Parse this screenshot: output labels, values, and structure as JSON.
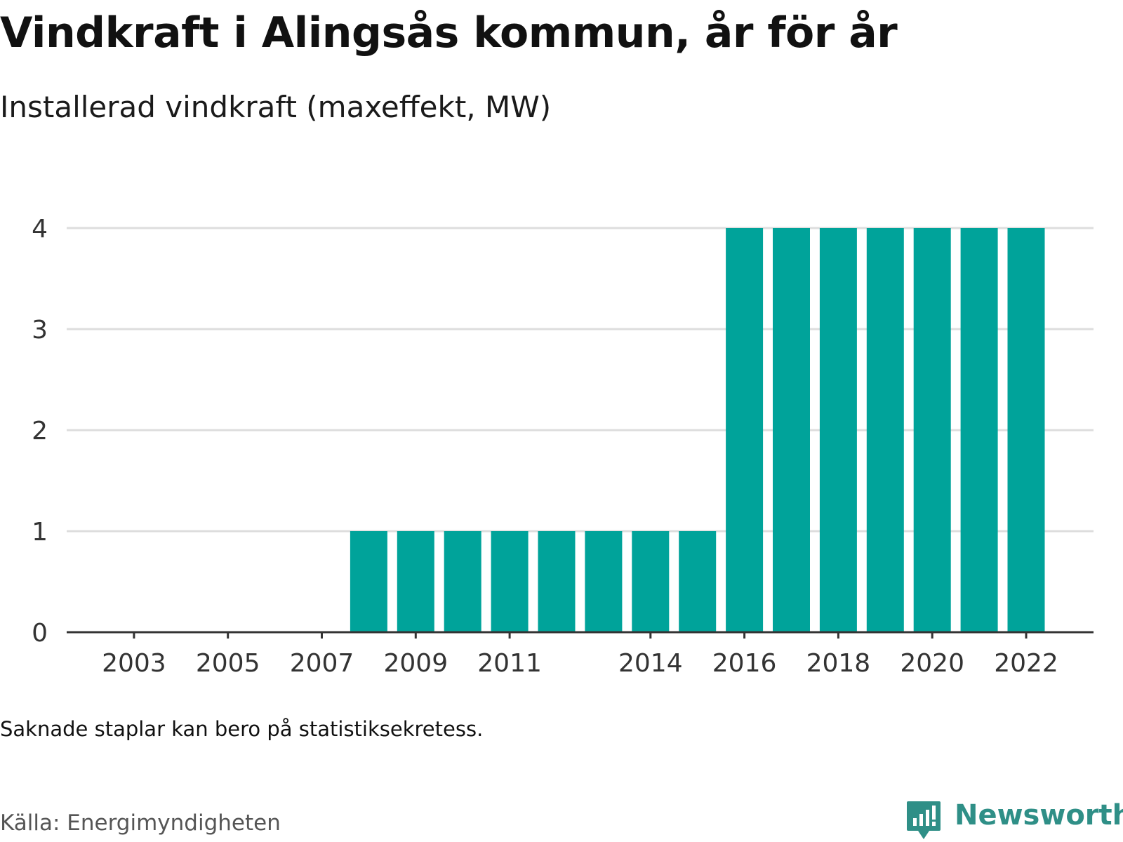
{
  "header": {
    "title": "Vindkraft i Alingsås kommun, år för år",
    "subtitle": "Installerad vindkraft (maxeffekt, MW)"
  },
  "footer": {
    "note": "Saknade staplar kan bero på statistiksekretess.",
    "source": "Källa: Energimyndigheten",
    "brand": "Newsworthy"
  },
  "colors": {
    "bar": "#00a39a",
    "grid": "#dddddd",
    "axis": "#333333",
    "brand": "#2f8f87"
  },
  "chart_data": {
    "type": "bar",
    "title": "Vindkraft i Alingsås kommun, år för år",
    "subtitle": "Installerad vindkraft (maxeffekt, MW)",
    "xlabel": "",
    "ylabel": "",
    "categories": [
      2002,
      2003,
      2004,
      2005,
      2006,
      2007,
      2008,
      2009,
      2010,
      2011,
      2012,
      2013,
      2014,
      2015,
      2016,
      2017,
      2018,
      2019,
      2020,
      2021,
      2022
    ],
    "values": [
      0,
      0,
      0,
      0,
      0,
      0,
      1,
      1,
      1,
      1,
      1,
      1,
      1,
      1,
      4,
      4,
      4,
      4,
      4,
      4,
      4
    ],
    "x_tick_labels": [
      "2003",
      "2005",
      "2007",
      "2009",
      "2011",
      "2014",
      "2016",
      "2018",
      "2020",
      "2022"
    ],
    "y_ticks": [
      0,
      1,
      2,
      3,
      4
    ],
    "ylim": [
      0,
      4
    ],
    "grid": true,
    "legend": "none"
  }
}
